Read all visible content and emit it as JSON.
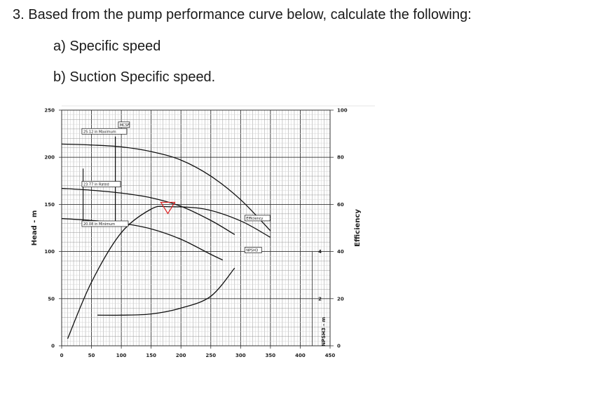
{
  "question": {
    "title": "3.  Based from the pump performance curve below, calculate the following:",
    "part_a": "a) Specific speed",
    "part_b": "b) Suction Specific speed."
  },
  "chart_data": {
    "type": "line",
    "title": "",
    "xlabel": "",
    "ylabel": "Head - m",
    "y2label": "Efficiency",
    "y3label": "NPSH3 - m",
    "xlim": [
      0,
      450
    ],
    "ylim": [
      0,
      250
    ],
    "y2lim": [
      0,
      100
    ],
    "grid": true,
    "x_ticks": [
      "0",
      "50",
      "100",
      "150",
      "200",
      "250",
      "300",
      "350",
      "400",
      "450"
    ],
    "y_ticks": [
      "0",
      "50",
      "100",
      "150",
      "200",
      "250"
    ],
    "y2_ticks": [
      "0",
      "20",
      "40",
      "60",
      "80",
      "100"
    ],
    "npsh_ticks": [
      "2",
      "4"
    ],
    "series": [
      {
        "name": "25.12 in  Maximum",
        "x": [
          0,
          50,
          100,
          150,
          200,
          250,
          300,
          350
        ],
        "y": [
          214,
          213,
          211,
          206,
          197,
          180,
          155,
          122
        ]
      },
      {
        "name": "23.77 in  Rated",
        "x": [
          0,
          50,
          100,
          150,
          200,
          250,
          290
        ],
        "y": [
          167,
          165,
          162,
          157,
          148,
          133,
          118
        ]
      },
      {
        "name": "20.08 in  Minimum",
        "x": [
          0,
          50,
          100,
          150,
          200,
          250,
          270
        ],
        "y": [
          135,
          133,
          130,
          124,
          113,
          97,
          91
        ]
      },
      {
        "name": "Efficiency",
        "x": [
          10,
          50,
          100,
          150,
          180,
          240,
          300,
          350
        ],
        "y": [
          3,
          27,
          48,
          58,
          59,
          58,
          53,
          46
        ]
      },
      {
        "name": "NPSH3",
        "x": [
          60,
          100,
          150,
          200,
          250,
          290
        ],
        "y": [
          1.3,
          1.3,
          1.35,
          1.6,
          2.1,
          3.3
        ]
      }
    ],
    "annotations": {
      "mcsf": "MCSF",
      "npsh_label": "NPSH3",
      "efficiency_label": "Efficiency"
    },
    "rated_point": {
      "x": 178,
      "y": 147
    },
    "mcsf_flow": 90
  }
}
